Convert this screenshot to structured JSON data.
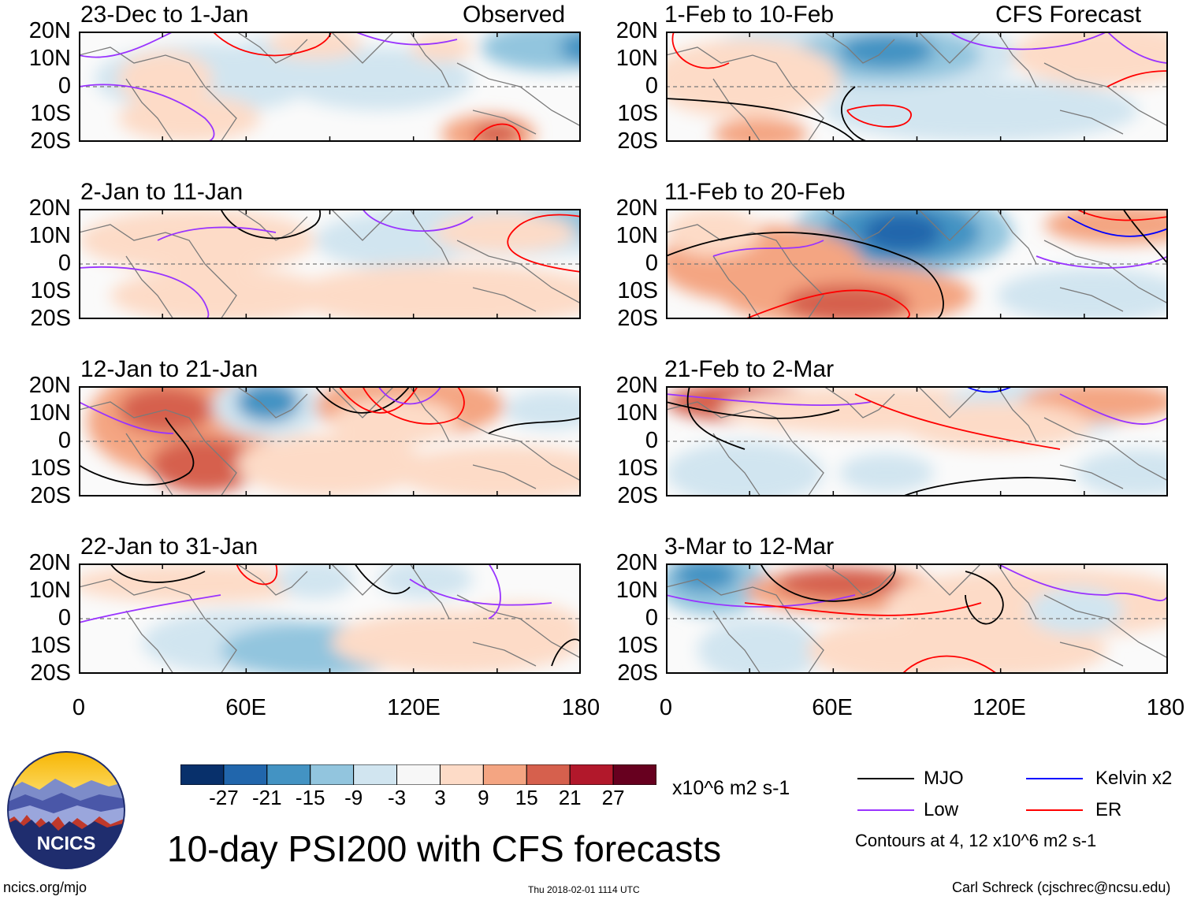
{
  "figure": {
    "title": "10-day PSI200 with CFS forecasts",
    "left_column_label": "Observed",
    "right_column_label": "CFS Forecast",
    "y_ticks": [
      "20N",
      "10N",
      "0",
      "10S",
      "20S"
    ],
    "x_ticks": [
      "0",
      "60E",
      "120E",
      "180"
    ]
  },
  "panels": [
    {
      "title": "23-Dec to 1-Jan",
      "corner": "Observed"
    },
    {
      "title": "2-Jan to 11-Jan",
      "corner": ""
    },
    {
      "title": "12-Jan to 21-Jan",
      "corner": ""
    },
    {
      "title": "22-Jan to 31-Jan",
      "corner": ""
    },
    {
      "title": "1-Feb to 10-Feb",
      "corner": "CFS Forecast"
    },
    {
      "title": "11-Feb to 20-Feb",
      "corner": ""
    },
    {
      "title": "21-Feb to 2-Mar",
      "corner": ""
    },
    {
      "title": "3-Mar to 12-Mar",
      "corner": ""
    }
  ],
  "colorbar": {
    "colors": [
      "#08306b",
      "#2166ac",
      "#4393c3",
      "#92c5de",
      "#d1e5f0",
      "#f7f7f7",
      "#fddbc7",
      "#f4a582",
      "#d6604d",
      "#b2182b",
      "#67001f"
    ],
    "labels": [
      "-27",
      "-21",
      "-15",
      "-9",
      "-3",
      "3",
      "9",
      "15",
      "21",
      "27"
    ],
    "units": "x10^6 m2 s-1"
  },
  "legend": {
    "items": [
      {
        "label": "MJO",
        "color": "#000000"
      },
      {
        "label": "Kelvin x2",
        "color": "#0000ff"
      },
      {
        "label": "Low",
        "color": "#9933ff"
      },
      {
        "label": "ER",
        "color": "#ff0000"
      }
    ],
    "note": "Contours at 4, 12 x10^6 m2 s-1"
  },
  "logo": {
    "text": "NCICS"
  },
  "footer": {
    "url": "ncics.org/mjo",
    "timestamp": "Thu 2018-02-01 1114 UTC",
    "author": "Carl Schreck (cjschrec@ncsu.edu)"
  }
}
